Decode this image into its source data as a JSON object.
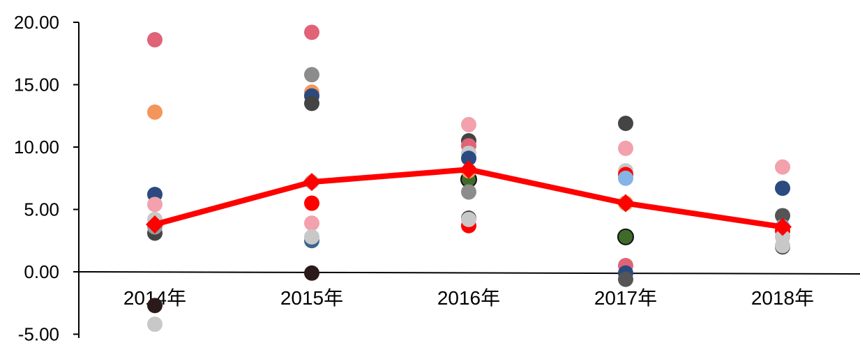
{
  "chart_data": {
    "type": "scatter",
    "categories": [
      "2014年",
      "2015年",
      "2016年",
      "2017年",
      "2018年"
    ],
    "yticks": [
      "20.00",
      "15.00",
      "10.00",
      "5.00",
      "0.00",
      "-5.00"
    ],
    "ylim": [
      -5,
      20
    ],
    "grid": false,
    "legend": "none",
    "title": "",
    "xlabel": "",
    "ylabel": "",
    "line_series": {
      "color": "#ff0000",
      "marker": "diamond",
      "values": [
        3.8,
        7.2,
        8.2,
        5.5,
        3.6
      ]
    },
    "scatter_points": [
      {
        "x": "2014年",
        "y": 18.6,
        "color": "#e06377"
      },
      {
        "x": "2014年",
        "y": 12.8,
        "color": "#f4965a"
      },
      {
        "x": "2014年",
        "y": 6.2,
        "color": "#2b4a80"
      },
      {
        "x": "2014年",
        "y": 5.4,
        "color": "#f2a1ad"
      },
      {
        "x": "2014年",
        "y": 3.1,
        "color": "#444444"
      },
      {
        "x": "2014年",
        "y": 3.6,
        "color": "#999999"
      },
      {
        "x": "2014年",
        "y": 4.2,
        "color": "#c8c8c8"
      },
      {
        "x": "2014年",
        "y": -2.7,
        "color": "#2a1a1a"
      },
      {
        "x": "2014年",
        "y": -4.2,
        "color": "#c8c8c8"
      },
      {
        "x": "2015年",
        "y": 19.2,
        "color": "#e06377"
      },
      {
        "x": "2015年",
        "y": 15.8,
        "color": "#8c8c8c"
      },
      {
        "x": "2015年",
        "y": 14.4,
        "color": "#f4965a"
      },
      {
        "x": "2015年",
        "y": 14.1,
        "color": "#2b4a80"
      },
      {
        "x": "2015年",
        "y": 13.5,
        "color": "#444444"
      },
      {
        "x": "2015年",
        "y": 7.2,
        "color": "#c8c8c8"
      },
      {
        "x": "2015年",
        "y": 5.5,
        "color": "#ff0000"
      },
      {
        "x": "2015年",
        "y": 3.9,
        "color": "#f2a1ad"
      },
      {
        "x": "2015年",
        "y": 2.5,
        "color": "#3d6690"
      },
      {
        "x": "2015年",
        "y": 2.8,
        "color": "#c8c8c8"
      },
      {
        "x": "2015年",
        "y": -0.1,
        "color": "#2a1a1a"
      },
      {
        "x": "2016年",
        "y": 11.8,
        "color": "#f2a1ad"
      },
      {
        "x": "2016年",
        "y": 10.5,
        "color": "#444444"
      },
      {
        "x": "2016年",
        "y": 10.1,
        "color": "#e06377"
      },
      {
        "x": "2016年",
        "y": 9.5,
        "color": "#c8c8c8"
      },
      {
        "x": "2016年",
        "y": 9.1,
        "color": "#2b4a80"
      },
      {
        "x": "2016年",
        "y": 7.4,
        "color": "#3f6b2a"
      },
      {
        "x": "2016年",
        "y": 8.1,
        "color": "#f4965a"
      },
      {
        "x": "2016年",
        "y": 6.4,
        "color": "#8c8c8c"
      },
      {
        "x": "2016年",
        "y": 4.3,
        "color": "#444444"
      },
      {
        "x": "2016年",
        "y": 3.7,
        "color": "#ff0000"
      },
      {
        "x": "2016年",
        "y": 4.2,
        "color": "#c8c8c8"
      },
      {
        "x": "2017年",
        "y": 11.9,
        "color": "#444444"
      },
      {
        "x": "2017年",
        "y": 9.9,
        "color": "#f2a1ad"
      },
      {
        "x": "2017年",
        "y": 8.1,
        "color": "#c8c8c8"
      },
      {
        "x": "2017年",
        "y": 7.8,
        "color": "#ff0000"
      },
      {
        "x": "2017年",
        "y": 7.5,
        "color": "#85b4e6"
      },
      {
        "x": "2017年",
        "y": 5.5,
        "color": "#f4965a"
      },
      {
        "x": "2017年",
        "y": 2.8,
        "color": "#3f6b2a"
      },
      {
        "x": "2017年",
        "y": 0.5,
        "color": "#e06377"
      },
      {
        "x": "2017年",
        "y": -0.1,
        "color": "#2b4a80"
      },
      {
        "x": "2017年",
        "y": -0.6,
        "color": "#555555"
      },
      {
        "x": "2018年",
        "y": 8.4,
        "color": "#f2a1ad"
      },
      {
        "x": "2018年",
        "y": 6.7,
        "color": "#2b4a80"
      },
      {
        "x": "2018年",
        "y": 4.5,
        "color": "#555555"
      },
      {
        "x": "2018年",
        "y": 3.6,
        "color": "#85b4e6"
      },
      {
        "x": "2018年",
        "y": 3.3,
        "color": "#ff0000"
      },
      {
        "x": "2018年",
        "y": 2.8,
        "color": "#c8c8c8"
      },
      {
        "x": "2018年",
        "y": 2.0,
        "color": "#444444"
      },
      {
        "x": "2018年",
        "y": 2.1,
        "color": "#c8c8c8"
      }
    ]
  }
}
